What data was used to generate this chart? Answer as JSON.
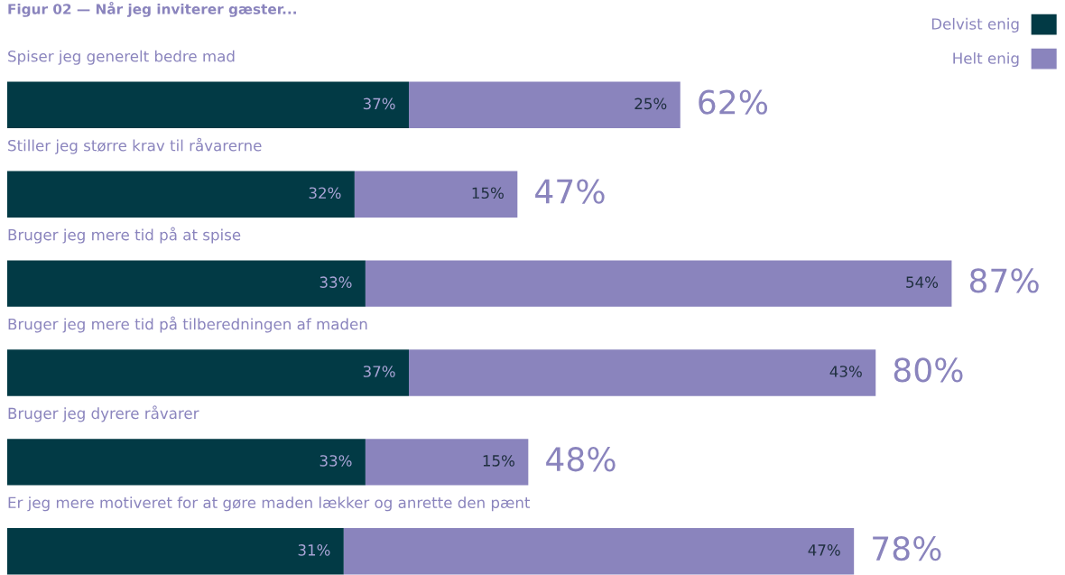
{
  "chart_data": {
    "type": "bar",
    "orientation": "horizontal",
    "stacked": true,
    "title": "Figur 02 — Når jeg inviterer gæster...",
    "categories": [
      "Spiser jeg generelt bedre mad",
      "Stiller jeg større krav til råvarerne",
      "Bruger jeg mere tid på at spise",
      "Bruger jeg mere tid på tilberedningen af maden",
      "Bruger jeg dyrere råvarer",
      "Er jeg mere motiveret for at gøre maden lækker og anrette den pænt"
    ],
    "series": [
      {
        "name": "Delvist enig",
        "color": "#023a45",
        "values": [
          37,
          32,
          33,
          37,
          33,
          31
        ],
        "value_labels": [
          "37%",
          "32%",
          "33%",
          "37%",
          "33%",
          "31%"
        ]
      },
      {
        "name": "Helt enig",
        "color": "#8a84bd",
        "values": [
          25,
          15,
          54,
          43,
          15,
          47
        ],
        "value_labels": [
          "25%",
          "15%",
          "54%",
          "43%",
          "15%",
          "47%"
        ]
      }
    ],
    "totals": [
      "62%",
      "47%",
      "87%",
      "80%",
      "48%",
      "78%"
    ],
    "legend": "top right"
  }
}
